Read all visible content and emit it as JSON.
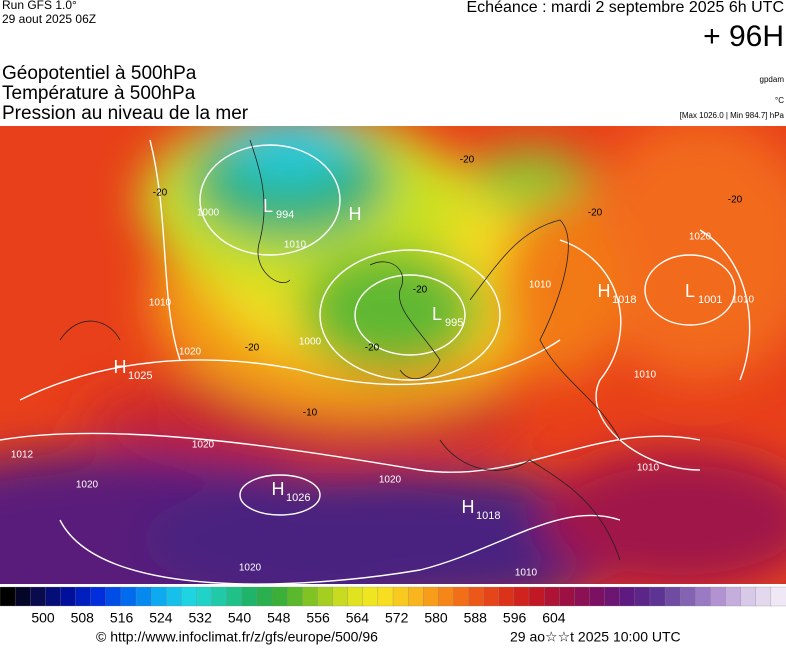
{
  "header": {
    "run": "Run GFS 1.0°",
    "date": "29 aout 2025 06Z",
    "echeance": "Echéance : mardi 2 septembre 2025 6h UTC",
    "lead": "+ 96H"
  },
  "titles": [
    "Géopotentiel à 500hPa",
    "Température à 500hPa",
    "Pression au niveau de la mer"
  ],
  "units": {
    "gpdam": "gpdam",
    "celsius": "°C",
    "range": "[Max 1026.0 | Min 984.7] hPa"
  },
  "pressure_centers": [
    {
      "letter": "H",
      "value": "1025"
    },
    {
      "letter": "H",
      "value": "1026"
    },
    {
      "letter": "H",
      "value": "1018"
    },
    {
      "letter": "H",
      "value": "1018"
    },
    {
      "letter": "L",
      "value": "995"
    },
    {
      "letter": "L",
      "value": "1001"
    },
    {
      "letter": "L",
      "value": "994"
    },
    {
      "letter": "H"
    }
  ],
  "isobar_labels": [
    "1012",
    "1020",
    "1020",
    "1020",
    "1020",
    "1020",
    "1010",
    "1000",
    "1000",
    "1010",
    "1010",
    "1020",
    "1010",
    "1010",
    "1010",
    "1010"
  ],
  "temperature_labels": [
    "-20",
    "-20",
    "-20",
    "-20",
    "-20",
    "-20",
    "-10",
    "-20"
  ],
  "colorbar": {
    "ticks": [
      "500",
      "508",
      "516",
      "524",
      "532",
      "540",
      "548",
      "556",
      "564",
      "572",
      "580",
      "588",
      "596",
      "604"
    ]
  },
  "footer": {
    "source": "© http://www.infoclimat.fr/z/gfs/europe/500/96",
    "generated": "29 ao☆☆t 2025 10:00 UTC"
  }
}
